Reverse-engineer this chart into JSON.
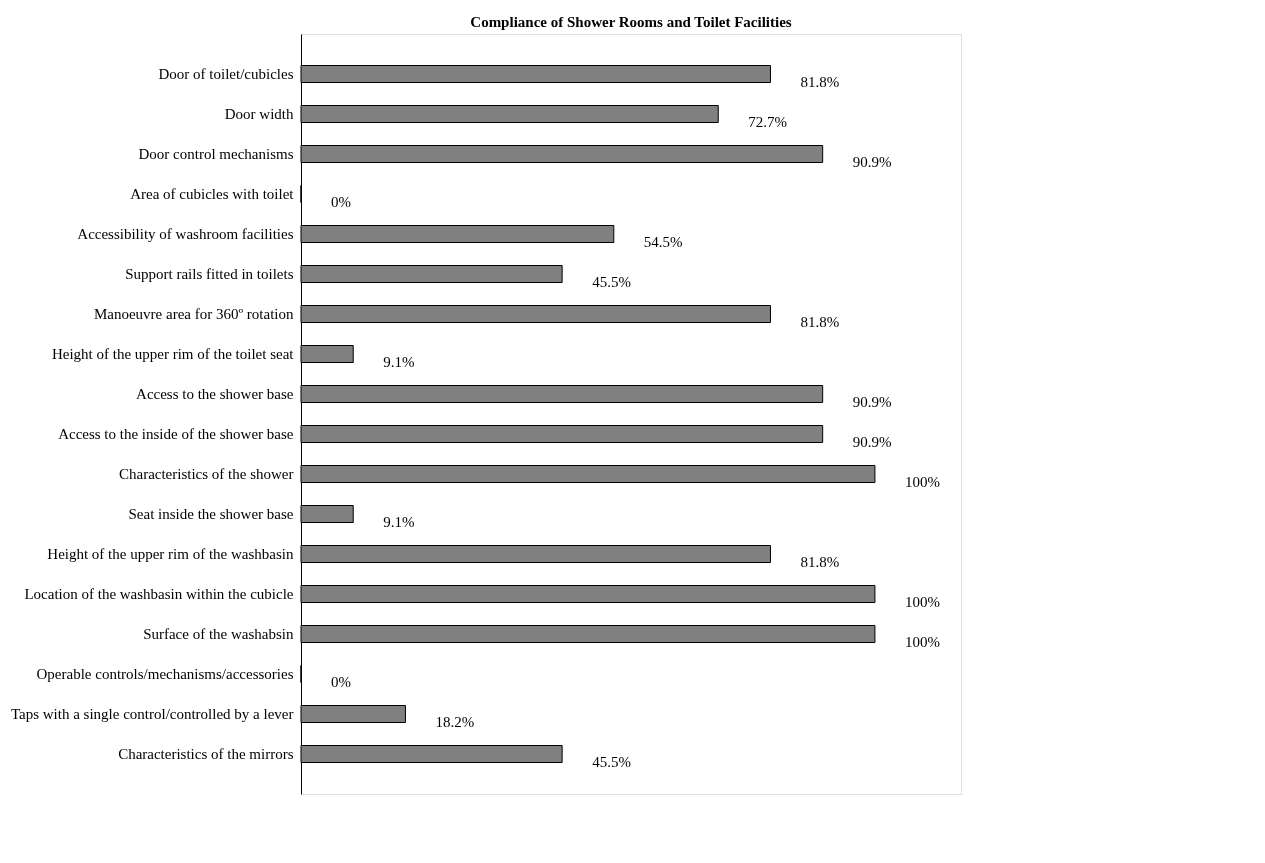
{
  "chart_data": {
    "type": "bar",
    "orientation": "horizontal",
    "title": "Compliance of Shower Rooms and Toilet Facilities",
    "categories": [
      "Door of toilet/cubicles",
      "Door width",
      "Door control mechanisms",
      "Area of cubicles with toilet",
      "Accessibility of washroom facilities",
      "Support rails fitted in toilets",
      "Manoeuvre area for 360º rotation",
      "Height of the upper rim of the toilet seat",
      "Access to the shower base",
      "Access to the inside of the shower base",
      "Characteristics of the shower",
      "Seat inside the shower base",
      "Height of the upper rim of the washbasin",
      "Location of the washbasin within the cubicle",
      "Surface of the washabsin",
      "Operable controls/mechanisms/accessories",
      "Taps with a single control/controlled by a lever",
      "Characteristics of the mirrors"
    ],
    "values": [
      81.8,
      72.7,
      90.9,
      0,
      54.5,
      45.5,
      81.8,
      9.1,
      90.9,
      90.9,
      100,
      9.1,
      81.8,
      100,
      100,
      0,
      18.2,
      45.5
    ],
    "value_labels": [
      "81.8%",
      "72.7%",
      "90.9%",
      "0%",
      "54.5%",
      "45.5%",
      "81.8%",
      "9.1%",
      "90.9%",
      "90.9%",
      "100%",
      "9.1%",
      "81.8%",
      "100%",
      "100%",
      "0%",
      "18.2%",
      "45.5%"
    ],
    "color": "#808080"
  }
}
